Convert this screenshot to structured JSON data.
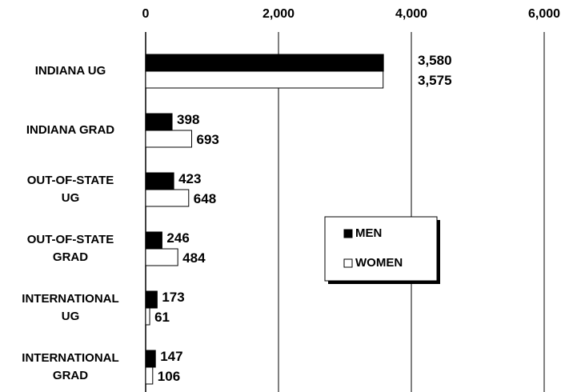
{
  "chart_data": {
    "type": "hbar",
    "categories": [
      [
        "INDIANA UG"
      ],
      [
        "INDIANA GRAD"
      ],
      [
        "OUT-OF-STATE",
        "UG"
      ],
      [
        "OUT-OF-STATE",
        "GRAD"
      ],
      [
        "INTERNATIONAL",
        "UG"
      ],
      [
        "INTERNATIONAL",
        "GRAD"
      ]
    ],
    "series": [
      {
        "name": "MEN",
        "color": "#000000",
        "values": [
          3580,
          398,
          423,
          246,
          173,
          147
        ],
        "value_labels": [
          "3,580",
          "398",
          "423",
          "246",
          "173",
          "147"
        ]
      },
      {
        "name": "WOMEN",
        "color": "#ffffff",
        "values": [
          3575,
          693,
          648,
          484,
          61,
          106
        ],
        "value_labels": [
          "3,575",
          "693",
          "648",
          "484",
          "61",
          "106"
        ]
      }
    ],
    "xlim": [
      0,
      6000
    ],
    "xticks": [
      0,
      {
        "value": 2000,
        "label": "2,000"
      },
      {
        "value": 4000,
        "label": "4,000"
      },
      {
        "value": 6000,
        "label": "6,000"
      }
    ],
    "grid": true,
    "legend": "center-right"
  }
}
